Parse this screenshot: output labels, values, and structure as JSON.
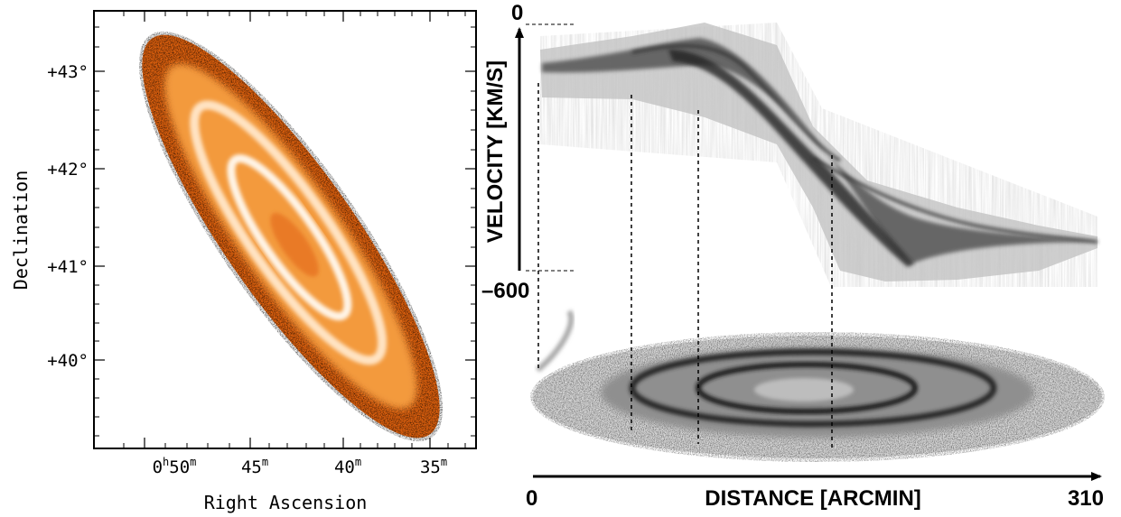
{
  "left_panel": {
    "xlabel": "Right Ascension",
    "ylabel": "Declination",
    "x_ticks": [
      {
        "h": "0",
        "h_sup": "h",
        "val": "50",
        "sup": "m"
      },
      {
        "h": "",
        "h_sup": "",
        "val": "45",
        "sup": "m"
      },
      {
        "h": "",
        "h_sup": "",
        "val": "40",
        "sup": "m"
      },
      {
        "h": "",
        "h_sup": "",
        "val": "35",
        "sup": "m"
      }
    ],
    "y_ticks": [
      "+43°",
      "+42°",
      "+41°",
      "+40°"
    ],
    "colors": {
      "disk": "#f07818",
      "inner": "#ffd9a8",
      "core": "#fff6e8",
      "edge": "#8a3000"
    }
  },
  "right_panel": {
    "velocity_label": "VELOCITY [KM/S]",
    "velocity_top": "0",
    "velocity_bottom": "–600",
    "distance_label": "DISTANCE [ARCMIN]",
    "distance_start": "0",
    "distance_end": "310",
    "colors": {
      "grey_light": "#d0d0d0",
      "grey_dark": "#2a2a2a"
    }
  }
}
